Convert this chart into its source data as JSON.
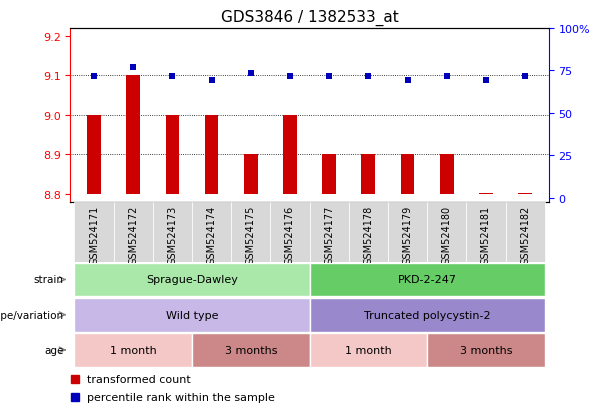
{
  "title": "GDS3846 / 1382533_at",
  "samples": [
    "GSM524171",
    "GSM524172",
    "GSM524173",
    "GSM524174",
    "GSM524175",
    "GSM524176",
    "GSM524177",
    "GSM524178",
    "GSM524179",
    "GSM524180",
    "GSM524181",
    "GSM524182"
  ],
  "transformed_counts": [
    9.0,
    9.1,
    9.0,
    9.0,
    8.9,
    9.0,
    8.9,
    8.9,
    8.9,
    8.9,
    8.802,
    8.802
  ],
  "percentile_ranks": [
    70,
    75,
    70,
    68,
    72,
    70,
    70,
    70,
    68,
    70,
    68,
    70
  ],
  "bar_bottom": 8.8,
  "ylim_left": [
    8.78,
    9.22
  ],
  "ylim_right": [
    -2.27272,
    97.72727
  ],
  "yticks_left": [
    8.8,
    8.9,
    9.0,
    9.1,
    9.2
  ],
  "yticks_right": [
    0,
    25,
    50,
    75,
    100
  ],
  "grid_values": [
    8.9,
    9.0,
    9.1
  ],
  "bar_color": "#cc0000",
  "dot_color": "#0000bb",
  "strain_labels": [
    {
      "text": "Sprague-Dawley",
      "start": 0,
      "end": 5,
      "color": "#aae8aa"
    },
    {
      "text": "PKD-2-247",
      "start": 6,
      "end": 11,
      "color": "#66cc66"
    }
  ],
  "genotype_labels": [
    {
      "text": "Wild type",
      "start": 0,
      "end": 5,
      "color": "#c8b8e8"
    },
    {
      "text": "Truncated polycystin-2",
      "start": 6,
      "end": 11,
      "color": "#9988cc"
    }
  ],
  "age_labels": [
    {
      "text": "1 month",
      "start": 0,
      "end": 2,
      "color": "#f5c8c8"
    },
    {
      "text": "3 months",
      "start": 3,
      "end": 5,
      "color": "#cc8888"
    },
    {
      "text": "1 month",
      "start": 6,
      "end": 8,
      "color": "#f5c8c8"
    },
    {
      "text": "3 months",
      "start": 9,
      "end": 11,
      "color": "#cc8888"
    }
  ],
  "row_labels": [
    "strain",
    "genotype/variation",
    "age"
  ],
  "legend_items": [
    {
      "label": "transformed count",
      "color": "#cc0000"
    },
    {
      "label": "percentile rank within the sample",
      "color": "#0000bb"
    }
  ],
  "fig_width": 6.13,
  "fig_height": 4.14,
  "dpi": 100
}
